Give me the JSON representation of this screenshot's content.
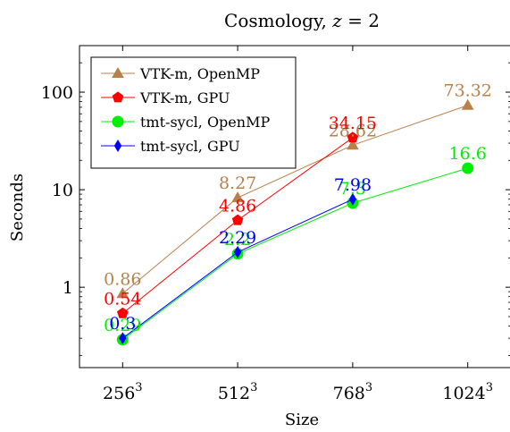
{
  "chart_data": {
    "type": "line",
    "title": "Cosmology, z = 2",
    "title_parts": {
      "text": "Cosmology, ",
      "var": "z",
      "rest": " = 2"
    },
    "xlabel": "Size",
    "ylabel": "Seconds",
    "y_scale": "log",
    "ylim": [
      0.15,
      300
    ],
    "yticks": [
      {
        "value": 1,
        "label": "1"
      },
      {
        "value": 10,
        "label": "10"
      },
      {
        "value": 100,
        "label": "100"
      }
    ],
    "categories": [
      {
        "base": "256",
        "exp": "3"
      },
      {
        "base": "512",
        "exp": "3"
      },
      {
        "base": "768",
        "exp": "3"
      },
      {
        "base": "1024",
        "exp": "3"
      }
    ],
    "x_positions": [
      256,
      512,
      768,
      1024
    ],
    "xlim": [
      160,
      1120
    ],
    "legend_position": "top-left",
    "series": [
      {
        "name": "VTK-m, OpenMP",
        "color": "#b8804a",
        "marker": "triangle",
        "x": [
          256,
          512,
          768,
          1024
        ],
        "values": [
          0.86,
          8.27,
          28.62,
          73.32
        ],
        "labels": [
          "0.86",
          "8.27",
          "28.62",
          "73.32"
        ]
      },
      {
        "name": "VTK-m, GPU",
        "color": "#ff0000",
        "marker": "pentagon",
        "x": [
          256,
          512,
          768
        ],
        "values": [
          0.54,
          4.86,
          34.15
        ],
        "labels": [
          "0.54",
          "4.86",
          "34.15"
        ]
      },
      {
        "name": "tmt-sycl, OpenMP",
        "color": "#00ee00",
        "marker": "circle",
        "x": [
          256,
          512,
          768,
          1024
        ],
        "values": [
          0.29,
          2.2,
          7.3,
          16.6
        ],
        "labels": [
          "0.29",
          "2.2",
          "7.3",
          "16.6"
        ]
      },
      {
        "name": "tmt-sycl, GPU",
        "color": "#0000ff",
        "marker": "diamond",
        "x": [
          256,
          512,
          768
        ],
        "values": [
          0.3,
          2.29,
          7.98
        ],
        "labels": [
          "0.3",
          "2.29",
          "7.98"
        ]
      }
    ]
  }
}
